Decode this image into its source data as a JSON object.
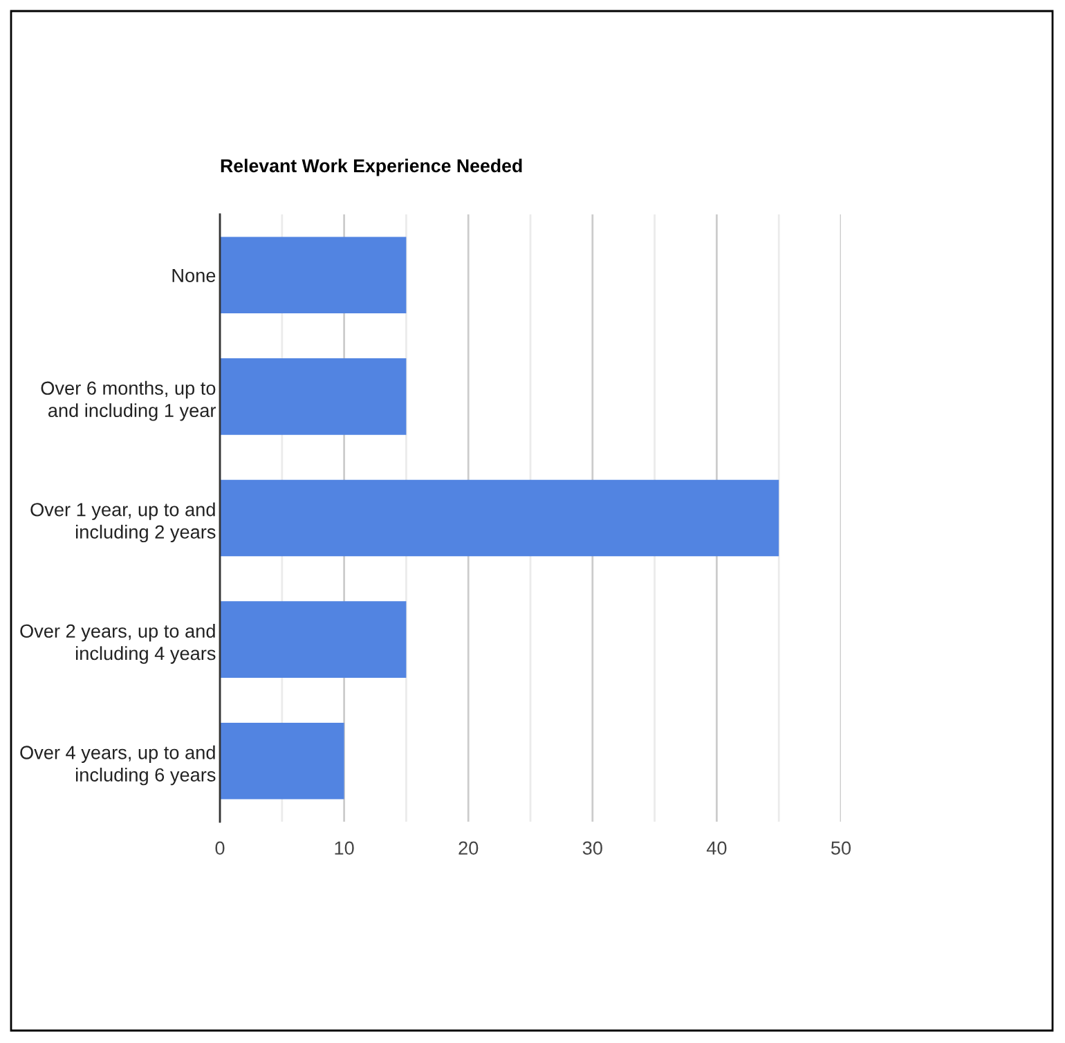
{
  "chart_data": {
    "type": "bar",
    "orientation": "horizontal",
    "title": "Relevant Work Experience Needed",
    "categories": [
      "None",
      "Over 6 months, up to\nand including 1 year",
      "Over 1 year, up to and\nincluding 2 years",
      "Over 2 years, up to and\nincluding 4 years",
      "Over 4 years, up to and\nincluding 6 years"
    ],
    "values": [
      15,
      15,
      45,
      15,
      10
    ],
    "color": "#5284e1",
    "xlim": [
      0,
      50
    ],
    "xticks": [
      0,
      {
        "value": 5,
        "label": null
      },
      10,
      {
        "value": 15,
        "label": null
      },
      20,
      {
        "value": 25,
        "label": null
      },
      30,
      {
        "value": 35,
        "label": null
      },
      40,
      {
        "value": 45,
        "label": null
      },
      50
    ],
    "grid": "x"
  }
}
